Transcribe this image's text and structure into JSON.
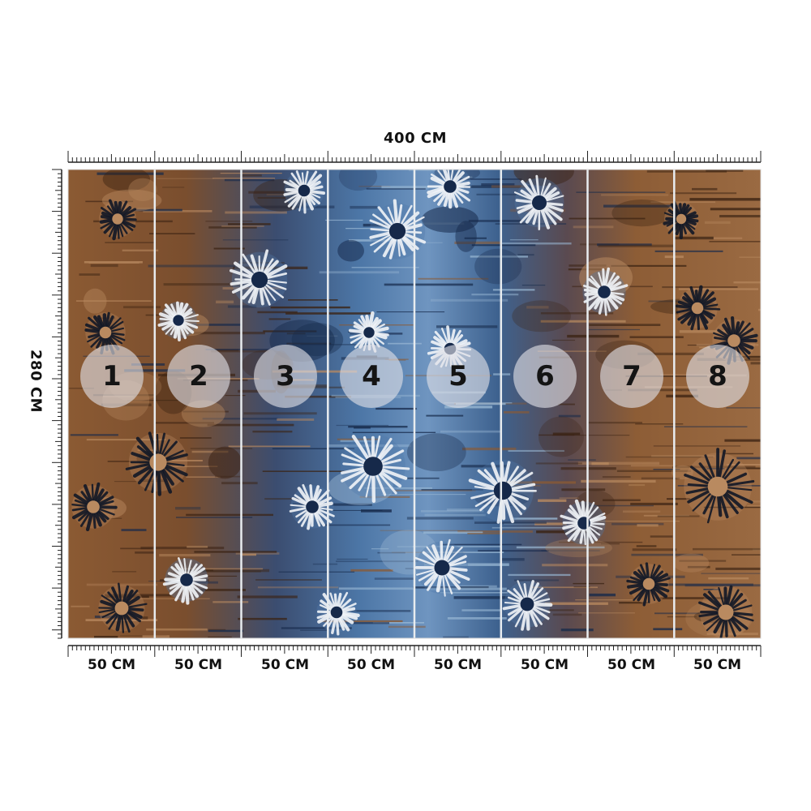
{
  "mural": {
    "width_label": "400 CM",
    "height_label": "280 CM",
    "panels": [
      {
        "number": "1",
        "width_label": "50 CM"
      },
      {
        "number": "2",
        "width_label": "50 CM"
      },
      {
        "number": "3",
        "width_label": "50 CM"
      },
      {
        "number": "4",
        "width_label": "50 CM"
      },
      {
        "number": "5",
        "width_label": "50 CM"
      },
      {
        "number": "6",
        "width_label": "50 CM"
      },
      {
        "number": "7",
        "width_label": "50 CM"
      },
      {
        "number": "8",
        "width_label": "50 CM"
      }
    ],
    "colors": {
      "brown": "#8a5a34",
      "brown_light": "#b98a60",
      "brown_dark": "#3a2212",
      "blue": "#4f79a8",
      "blue_light": "#9ab8d4",
      "blue_dark": "#16294a",
      "flower_light": "#f1f4f8",
      "flower_dark": "#121826",
      "panel_line": "#e8ecef"
    }
  }
}
